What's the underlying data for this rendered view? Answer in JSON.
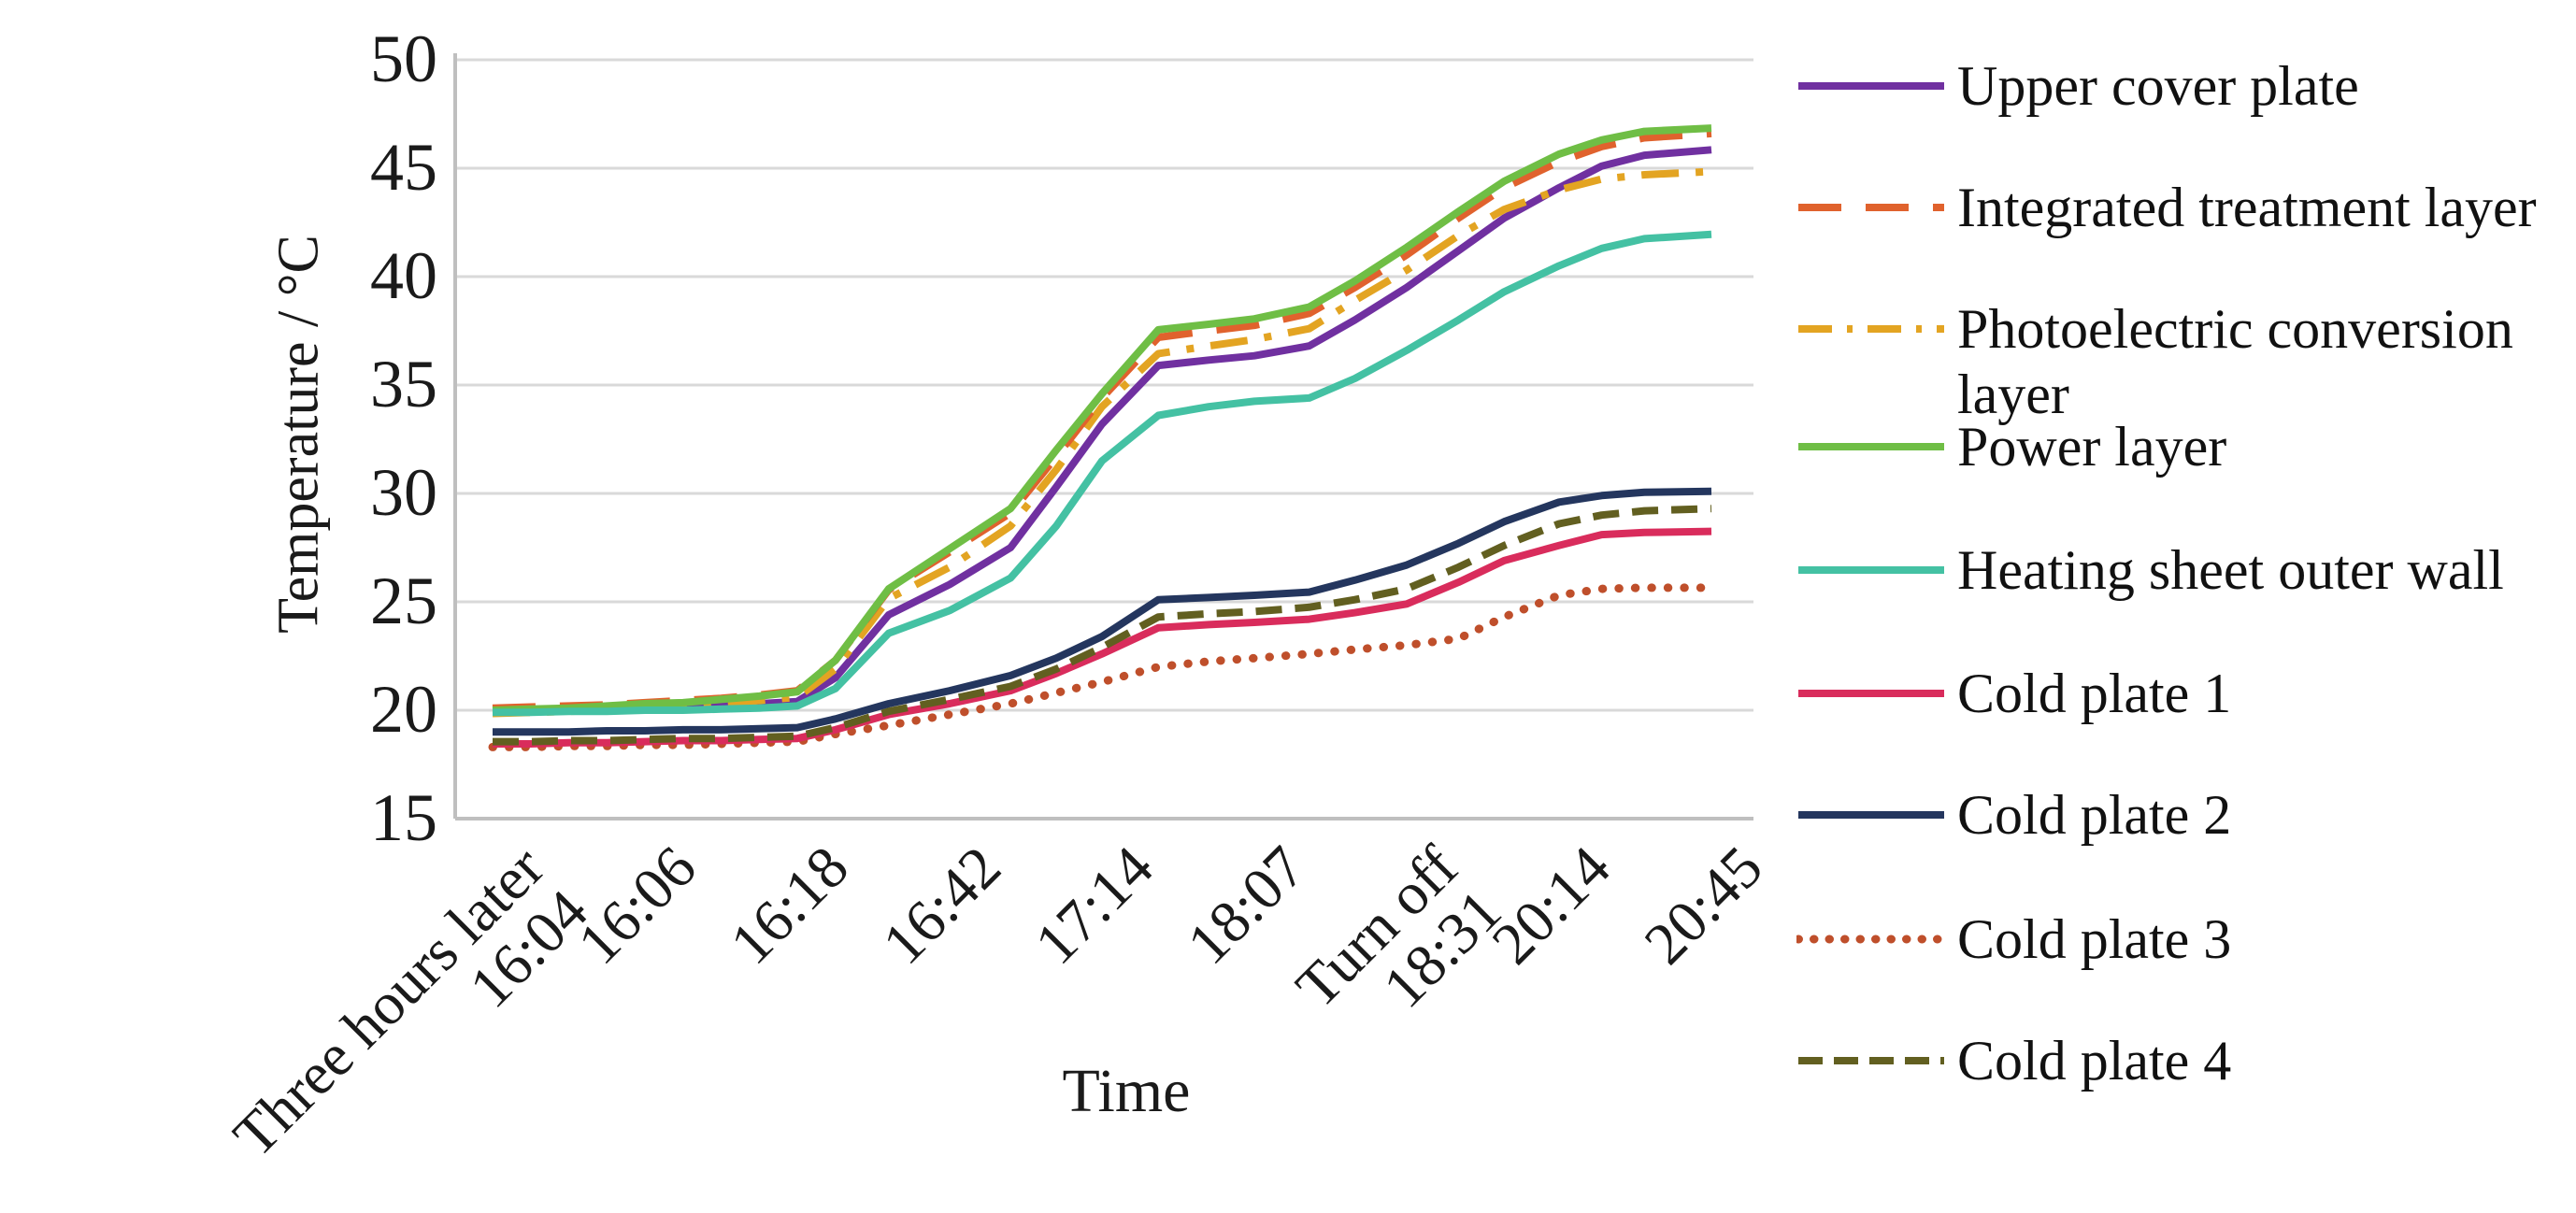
{
  "page": {
    "background": "#FFFFFF"
  },
  "colors": {
    "grid": "#D9D9D9",
    "axis": "#BFBFBF",
    "text": "#1A1A1A"
  },
  "chart_data": {
    "type": "line",
    "title": "",
    "xlabel": "Time",
    "ylabel": "Temperature / °C",
    "ylim": [
      15,
      50
    ],
    "yticks": [
      15,
      20,
      25,
      30,
      35,
      40,
      45,
      50
    ],
    "grid": "horizontal",
    "legend_position": "right",
    "x_tick_labels": [
      "Three hours later\n16:04",
      "16:06",
      "16:18",
      "16:42",
      "17:14",
      "18:07",
      "Turn off\n18:31",
      "20:14",
      "20:45"
    ],
    "x_stations": [
      0,
      0.25,
      0.5,
      0.75,
      1,
      1.25,
      1.5,
      1.75,
      2,
      2.25,
      2.6,
      3,
      3.4,
      3.7,
      4,
      4.37,
      4.7,
      5,
      5.36,
      5.66,
      6,
      6.34,
      6.64,
      7,
      7.28,
      7.56,
      8
    ],
    "series": [
      {
        "name": "Upper cover plate",
        "color": "#7030A0",
        "style": "solid",
        "values": [
          20.0,
          20.0,
          20.05,
          20.1,
          20.15,
          20.2,
          20.25,
          20.3,
          20.4,
          21.5,
          24.4,
          25.8,
          27.5,
          30.3,
          33.2,
          35.9,
          36.15,
          36.35,
          36.8,
          38.0,
          39.5,
          41.2,
          42.7,
          44.1,
          45.1,
          45.6,
          45.85
        ]
      },
      {
        "name": "Integrated treatment layer",
        "color": "#E0622D",
        "style": "dashed",
        "values": [
          20.1,
          20.15,
          20.2,
          20.25,
          20.35,
          20.45,
          20.55,
          20.7,
          20.9,
          22.3,
          25.55,
          27.3,
          29.1,
          31.7,
          34.4,
          37.2,
          37.5,
          37.75,
          38.3,
          39.5,
          41.0,
          42.7,
          44.1,
          45.3,
          46.0,
          46.4,
          46.6
        ]
      },
      {
        "name": "Photoelectric conversion layer",
        "color": "#E3A422",
        "style": "dashdot",
        "values": [
          19.85,
          19.9,
          19.95,
          20.0,
          20.1,
          20.15,
          20.3,
          20.45,
          20.6,
          21.9,
          25.15,
          26.6,
          28.5,
          31.1,
          34.0,
          36.45,
          36.8,
          37.1,
          37.6,
          38.9,
          40.3,
          41.9,
          43.1,
          44.0,
          44.5,
          44.7,
          44.85
        ]
      },
      {
        "name": "Power layer",
        "color": "#6FBE45",
        "style": "solid",
        "values": [
          20.0,
          20.05,
          20.1,
          20.2,
          20.3,
          20.35,
          20.5,
          20.65,
          20.85,
          22.3,
          25.6,
          27.45,
          29.3,
          32.0,
          34.6,
          37.55,
          37.8,
          38.05,
          38.6,
          39.8,
          41.35,
          43.0,
          44.4,
          45.65,
          46.3,
          46.7,
          46.85
        ]
      },
      {
        "name": "Heating sheet outer wall",
        "color": "#44C1A3",
        "style": "solid",
        "values": [
          19.9,
          19.9,
          19.95,
          19.95,
          20.0,
          20.0,
          20.05,
          20.1,
          20.2,
          21.0,
          23.55,
          24.6,
          26.1,
          28.5,
          31.5,
          33.6,
          34.0,
          34.25,
          34.4,
          35.3,
          36.6,
          38.0,
          39.3,
          40.5,
          41.3,
          41.75,
          41.95
        ]
      },
      {
        "name": "Cold plate 1",
        "color": "#D92C5C",
        "style": "solid",
        "values": [
          18.45,
          18.45,
          18.5,
          18.5,
          18.55,
          18.6,
          18.6,
          18.65,
          18.7,
          19.1,
          19.8,
          20.3,
          20.9,
          21.7,
          22.6,
          23.8,
          23.95,
          24.05,
          24.2,
          24.5,
          24.9,
          25.9,
          26.9,
          27.6,
          28.1,
          28.2,
          28.25
        ]
      },
      {
        "name": "Cold plate 2",
        "color": "#24365E",
        "style": "solid",
        "values": [
          19.0,
          19.0,
          19.0,
          19.05,
          19.05,
          19.1,
          19.1,
          19.15,
          19.2,
          19.6,
          20.3,
          20.9,
          21.6,
          22.4,
          23.4,
          25.1,
          25.2,
          25.3,
          25.45,
          26.0,
          26.7,
          27.7,
          28.7,
          29.6,
          29.9,
          30.05,
          30.1
        ]
      },
      {
        "name": "Cold plate 3",
        "color": "#BF4F2B",
        "style": "dotted",
        "values": [
          18.3,
          18.3,
          18.35,
          18.35,
          18.4,
          18.4,
          18.45,
          18.5,
          18.55,
          18.9,
          19.3,
          19.8,
          20.3,
          20.8,
          21.3,
          22.0,
          22.25,
          22.4,
          22.6,
          22.8,
          23.0,
          23.3,
          24.3,
          25.3,
          25.6,
          25.65,
          25.65
        ]
      },
      {
        "name": "Cold plate 4",
        "color": "#625F20",
        "style": "short-dash",
        "values": [
          18.55,
          18.55,
          18.6,
          18.6,
          18.65,
          18.7,
          18.7,
          18.75,
          18.8,
          19.2,
          19.95,
          20.5,
          21.1,
          21.9,
          22.9,
          24.3,
          24.45,
          24.55,
          24.75,
          25.1,
          25.6,
          26.6,
          27.6,
          28.6,
          29.0,
          29.2,
          29.3
        ]
      }
    ]
  }
}
